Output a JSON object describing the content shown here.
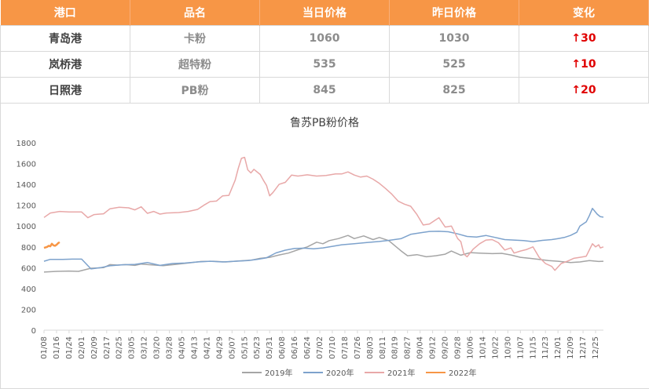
{
  "table": {
    "headers": [
      "港口",
      "品名",
      "当日价格",
      "昨日价格",
      "变化"
    ],
    "rows": [
      {
        "port": "青岛港",
        "product": "卡粉",
        "today": "1060",
        "yesterday": "1030",
        "change": "↑30"
      },
      {
        "port": "岚桥港",
        "product": "超特粉",
        "today": "535",
        "yesterday": "525",
        "change": "↑10"
      },
      {
        "port": "日照港",
        "product": "PB粉",
        "today": "845",
        "yesterday": "825",
        "change": "↑20"
      }
    ],
    "colors": {
      "header_bg": "#f79646",
      "up": "#e00000"
    }
  },
  "chart_data": {
    "type": "line",
    "title": "鲁苏PB粉价格",
    "ylim": [
      0,
      1800
    ],
    "yticks": [
      0,
      200,
      400,
      600,
      800,
      1000,
      1200,
      1400,
      1600,
      1800
    ],
    "xlim": [
      8,
      365
    ],
    "x_unit": "day of year",
    "xtick_days": [
      8,
      16,
      24,
      32,
      40,
      48,
      56,
      64,
      72,
      80,
      88,
      96,
      104,
      112,
      120,
      128,
      136,
      144,
      152,
      160,
      168,
      176,
      184,
      192,
      200,
      208,
      216,
      224,
      232,
      240,
      248,
      256,
      264,
      272,
      280,
      288,
      296,
      304,
      312,
      320,
      328,
      336,
      344,
      352,
      360
    ],
    "xticks": [
      "01/08",
      "01/16",
      "01/24",
      "02/01",
      "02/09",
      "02/17",
      "02/25",
      "03/05",
      "03/12",
      "03/20",
      "03/28",
      "04/05",
      "04/13",
      "04/21",
      "04/29",
      "05/07",
      "05/15",
      "05/23",
      "05/31",
      "06/08",
      "06/16",
      "06/24",
      "07/02",
      "07/10",
      "07/18",
      "07/26",
      "08/03",
      "08/11",
      "08/19",
      "08/27",
      "09/04",
      "09/12",
      "09/20",
      "09/28",
      "10/06",
      "10/14",
      "10/22",
      "10/30",
      "11/07",
      "11/15",
      "11/23",
      "12/01",
      "12/09",
      "12/17",
      "12/25"
    ],
    "legend_position": "bottom",
    "series": [
      {
        "name": "2019年",
        "color": "#a5a5a5",
        "points": [
          [
            8,
            558
          ],
          [
            16,
            565
          ],
          [
            24,
            568
          ],
          [
            30,
            565
          ],
          [
            38,
            595
          ],
          [
            46,
            600
          ],
          [
            50,
            630
          ],
          [
            55,
            625
          ],
          [
            60,
            630
          ],
          [
            66,
            622
          ],
          [
            70,
            635
          ],
          [
            76,
            628
          ],
          [
            84,
            620
          ],
          [
            92,
            632
          ],
          [
            100,
            645
          ],
          [
            108,
            660
          ],
          [
            116,
            662
          ],
          [
            124,
            655
          ],
          [
            132,
            665
          ],
          [
            140,
            672
          ],
          [
            146,
            690
          ],
          [
            152,
            700
          ],
          [
            158,
            722
          ],
          [
            164,
            740
          ],
          [
            170,
            772
          ],
          [
            176,
            800
          ],
          [
            182,
            845
          ],
          [
            186,
            830
          ],
          [
            190,
            860
          ],
          [
            196,
            880
          ],
          [
            202,
            910
          ],
          [
            206,
            880
          ],
          [
            212,
            905
          ],
          [
            218,
            870
          ],
          [
            222,
            890
          ],
          [
            228,
            860
          ],
          [
            232,
            810
          ],
          [
            236,
            760
          ],
          [
            240,
            715
          ],
          [
            246,
            725
          ],
          [
            252,
            705
          ],
          [
            258,
            715
          ],
          [
            264,
            730
          ],
          [
            268,
            760
          ],
          [
            274,
            720
          ],
          [
            280,
            745
          ],
          [
            286,
            740
          ],
          [
            294,
            735
          ],
          [
            300,
            738
          ],
          [
            306,
            722
          ],
          [
            312,
            700
          ],
          [
            318,
            690
          ],
          [
            324,
            680
          ],
          [
            330,
            668
          ],
          [
            336,
            662
          ],
          [
            344,
            650
          ],
          [
            350,
            655
          ],
          [
            356,
            668
          ],
          [
            362,
            660
          ],
          [
            365,
            662
          ]
        ]
      },
      {
        "name": "2020年",
        "color": "#7da2cc",
        "points": [
          [
            8,
            662
          ],
          [
            12,
            680
          ],
          [
            20,
            680
          ],
          [
            26,
            682
          ],
          [
            32,
            682
          ],
          [
            38,
            588
          ],
          [
            44,
            600
          ],
          [
            50,
            618
          ],
          [
            58,
            628
          ],
          [
            66,
            632
          ],
          [
            74,
            650
          ],
          [
            82,
            622
          ],
          [
            90,
            640
          ],
          [
            98,
            645
          ],
          [
            106,
            655
          ],
          [
            114,
            662
          ],
          [
            122,
            655
          ],
          [
            130,
            662
          ],
          [
            138,
            668
          ],
          [
            144,
            680
          ],
          [
            150,
            695
          ],
          [
            156,
            742
          ],
          [
            162,
            768
          ],
          [
            168,
            785
          ],
          [
            174,
            788
          ],
          [
            180,
            782
          ],
          [
            186,
            790
          ],
          [
            192,
            805
          ],
          [
            198,
            820
          ],
          [
            206,
            830
          ],
          [
            214,
            842
          ],
          [
            222,
            852
          ],
          [
            228,
            862
          ],
          [
            236,
            880
          ],
          [
            242,
            920
          ],
          [
            248,
            935
          ],
          [
            254,
            948
          ],
          [
            260,
            950
          ],
          [
            266,
            945
          ],
          [
            272,
            925
          ],
          [
            278,
            900
          ],
          [
            284,
            895
          ],
          [
            290,
            910
          ],
          [
            296,
            890
          ],
          [
            302,
            870
          ],
          [
            308,
            865
          ],
          [
            314,
            860
          ],
          [
            320,
            850
          ],
          [
            326,
            862
          ],
          [
            332,
            870
          ],
          [
            336,
            880
          ],
          [
            340,
            890
          ],
          [
            344,
            910
          ],
          [
            348,
            940
          ],
          [
            350,
            1000
          ],
          [
            354,
            1040
          ],
          [
            356,
            1100
          ],
          [
            358,
            1170
          ],
          [
            361,
            1115
          ],
          [
            363,
            1090
          ],
          [
            365,
            1085
          ]
        ]
      },
      {
        "name": "2021年",
        "color": "#e8a8a8",
        "points": [
          [
            8,
            1082
          ],
          [
            12,
            1125
          ],
          [
            18,
            1140
          ],
          [
            24,
            1135
          ],
          [
            32,
            1135
          ],
          [
            36,
            1080
          ],
          [
            40,
            1110
          ],
          [
            46,
            1118
          ],
          [
            50,
            1165
          ],
          [
            56,
            1180
          ],
          [
            62,
            1175
          ],
          [
            66,
            1155
          ],
          [
            70,
            1185
          ],
          [
            74,
            1122
          ],
          [
            78,
            1140
          ],
          [
            82,
            1115
          ],
          [
            86,
            1125
          ],
          [
            94,
            1130
          ],
          [
            100,
            1140
          ],
          [
            106,
            1160
          ],
          [
            110,
            1200
          ],
          [
            114,
            1235
          ],
          [
            118,
            1240
          ],
          [
            122,
            1290
          ],
          [
            126,
            1295
          ],
          [
            130,
            1440
          ],
          [
            132,
            1555
          ],
          [
            134,
            1650
          ],
          [
            136,
            1660
          ],
          [
            138,
            1540
          ],
          [
            140,
            1510
          ],
          [
            142,
            1545
          ],
          [
            146,
            1495
          ],
          [
            148,
            1440
          ],
          [
            150,
            1390
          ],
          [
            152,
            1290
          ],
          [
            154,
            1320
          ],
          [
            156,
            1360
          ],
          [
            158,
            1400
          ],
          [
            162,
            1420
          ],
          [
            166,
            1490
          ],
          [
            170,
            1480
          ],
          [
            176,
            1492
          ],
          [
            182,
            1480
          ],
          [
            188,
            1485
          ],
          [
            194,
            1500
          ],
          [
            198,
            1500
          ],
          [
            202,
            1520
          ],
          [
            206,
            1490
          ],
          [
            210,
            1470
          ],
          [
            214,
            1480
          ],
          [
            218,
            1450
          ],
          [
            222,
            1410
          ],
          [
            226,
            1360
          ],
          [
            230,
            1305
          ],
          [
            234,
            1240
          ],
          [
            238,
            1210
          ],
          [
            242,
            1190
          ],
          [
            246,
            1110
          ],
          [
            250,
            1010
          ],
          [
            254,
            1020
          ],
          [
            258,
            1060
          ],
          [
            260,
            1080
          ],
          [
            264,
            990
          ],
          [
            268,
            1000
          ],
          [
            270,
            940
          ],
          [
            272,
            880
          ],
          [
            274,
            850
          ],
          [
            276,
            730
          ],
          [
            278,
            705
          ],
          [
            282,
            780
          ],
          [
            286,
            830
          ],
          [
            290,
            865
          ],
          [
            294,
            870
          ],
          [
            298,
            840
          ],
          [
            302,
            770
          ],
          [
            306,
            790
          ],
          [
            308,
            740
          ],
          [
            312,
            760
          ],
          [
            316,
            775
          ],
          [
            320,
            800
          ],
          [
            324,
            700
          ],
          [
            328,
            640
          ],
          [
            332,
            612
          ],
          [
            334,
            575
          ],
          [
            338,
            640
          ],
          [
            342,
            662
          ],
          [
            346,
            690
          ],
          [
            350,
            700
          ],
          [
            354,
            710
          ],
          [
            358,
            830
          ],
          [
            360,
            800
          ],
          [
            362,
            820
          ],
          [
            363,
            790
          ],
          [
            365,
            800
          ]
        ]
      },
      {
        "name": "2022年",
        "color": "#f79646",
        "points": [
          [
            8,
            790
          ],
          [
            10,
            800
          ],
          [
            11,
            810
          ],
          [
            12,
            805
          ],
          [
            13,
            830
          ],
          [
            14,
            815
          ],
          [
            15,
            810
          ],
          [
            16,
            820
          ],
          [
            17,
            835
          ],
          [
            18,
            845
          ]
        ]
      }
    ]
  }
}
